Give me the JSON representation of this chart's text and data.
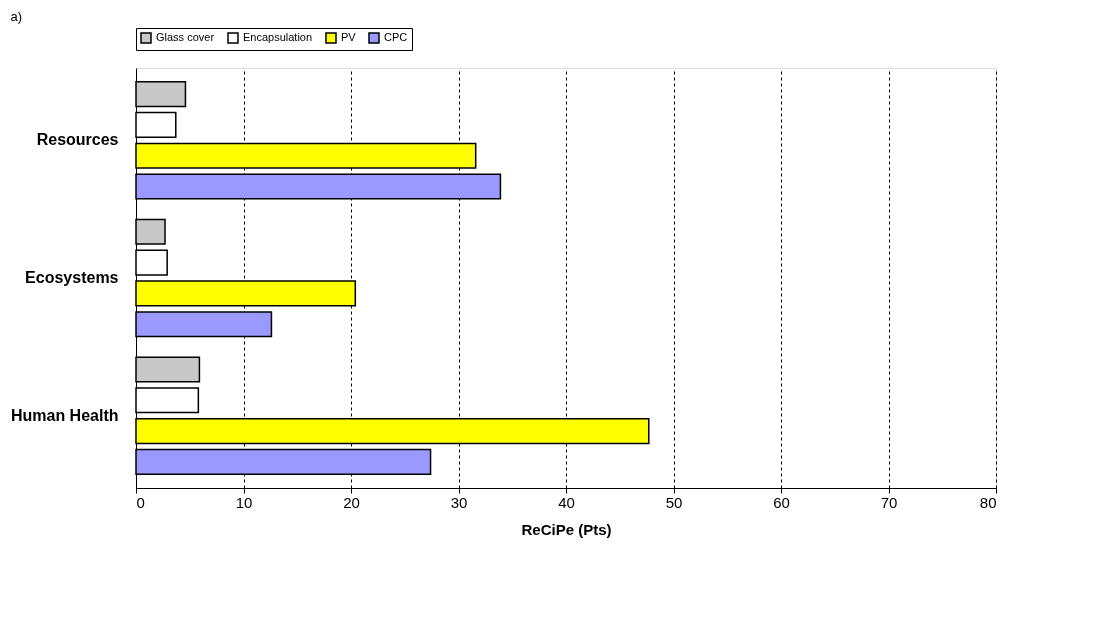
{
  "chart_data": {
    "type": "bar",
    "orientation": "horizontal",
    "xlabel": "ReCiPe (Pts)",
    "annotations": [
      "a)"
    ],
    "categories": [
      "Resources",
      "Ecosystems",
      "Human Health"
    ],
    "series": [
      {
        "name": "Glass cover",
        "color": "#c8c8c8",
        "values": [
          4.6,
          2.7,
          5.9
        ]
      },
      {
        "name": "Encapsulation",
        "color": "#ffffff",
        "values": [
          3.7,
          2.9,
          5.8
        ]
      },
      {
        "name": "PV",
        "color": "#ffff00",
        "values": [
          31.6,
          20.4,
          47.7
        ]
      },
      {
        "name": "CPC",
        "color": "#9999ff",
        "values": [
          33.9,
          12.6,
          27.4
        ]
      }
    ],
    "xlim": [
      0,
      80
    ],
    "xticks": [
      0,
      10,
      20,
      30,
      40,
      50,
      60,
      70,
      80
    ],
    "grid": "x",
    "line_style": "dashed",
    "legend": "top"
  }
}
